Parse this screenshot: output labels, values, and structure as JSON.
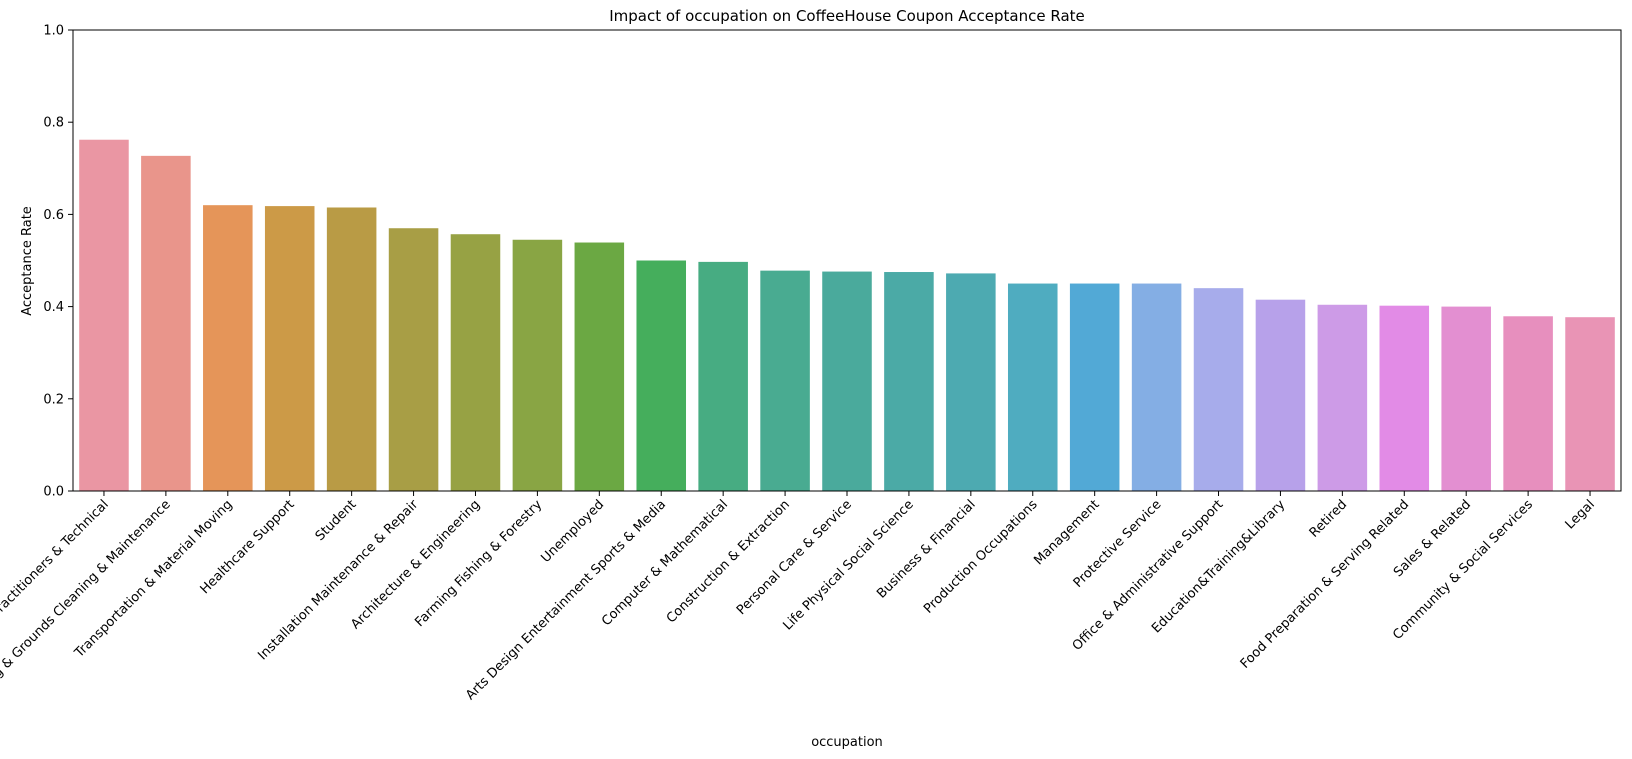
{
  "chart_data": {
    "type": "bar",
    "title": "Impact of occupation on CoffeeHouse Coupon Acceptance Rate",
    "xlabel": "occupation",
    "ylabel": "Acceptance Rate",
    "ylim": [
      0,
      1.0
    ],
    "yticks": [
      "0.0",
      "0.2",
      "0.4",
      "0.6",
      "0.8",
      "1.0"
    ],
    "grid": false,
    "categories": [
      "Healthcare Practitioners & Technical",
      "Building & Grounds Cleaning & Maintenance",
      "Transportation & Material Moving",
      "Healthcare Support",
      "Student",
      "Installation Maintenance & Repair",
      "Architecture & Engineering",
      "Farming Fishing & Forestry",
      "Unemployed",
      "Arts Design Entertainment Sports & Media",
      "Computer & Mathematical",
      "Construction & Extraction",
      "Personal Care & Service",
      "Life Physical Social Science",
      "Business & Financial",
      "Production Occupations",
      "Management",
      "Protective Service",
      "Office & Administrative Support",
      "Education&Training&Library",
      "Retired",
      "Food Preparation & Serving Related",
      "Sales & Related",
      "Community & Social Services",
      "Legal"
    ],
    "values": [
      0.762,
      0.727,
      0.62,
      0.618,
      0.615,
      0.57,
      0.557,
      0.545,
      0.539,
      0.5,
      0.497,
      0.478,
      0.476,
      0.475,
      0.472,
      0.45,
      0.45,
      0.45,
      0.44,
      0.415,
      0.404,
      0.402,
      0.4,
      0.379,
      0.377
    ],
    "colors": [
      "#ea96a3",
      "#e9958b",
      "#e59559",
      "#cc9a47",
      "#b99b45",
      "#a89e45",
      "#97a244",
      "#89a544",
      "#6ba843",
      "#45ae5c",
      "#47ac82",
      "#49ab91",
      "#4aaa9c",
      "#4baaa6",
      "#4daab1",
      "#4facc0",
      "#52a9d6",
      "#84aee4",
      "#a7aceb",
      "#b7a1ea",
      "#cd9be7",
      "#e28be6",
      "#e38fd1",
      "#e78fbe",
      "#e994b5"
    ]
  }
}
